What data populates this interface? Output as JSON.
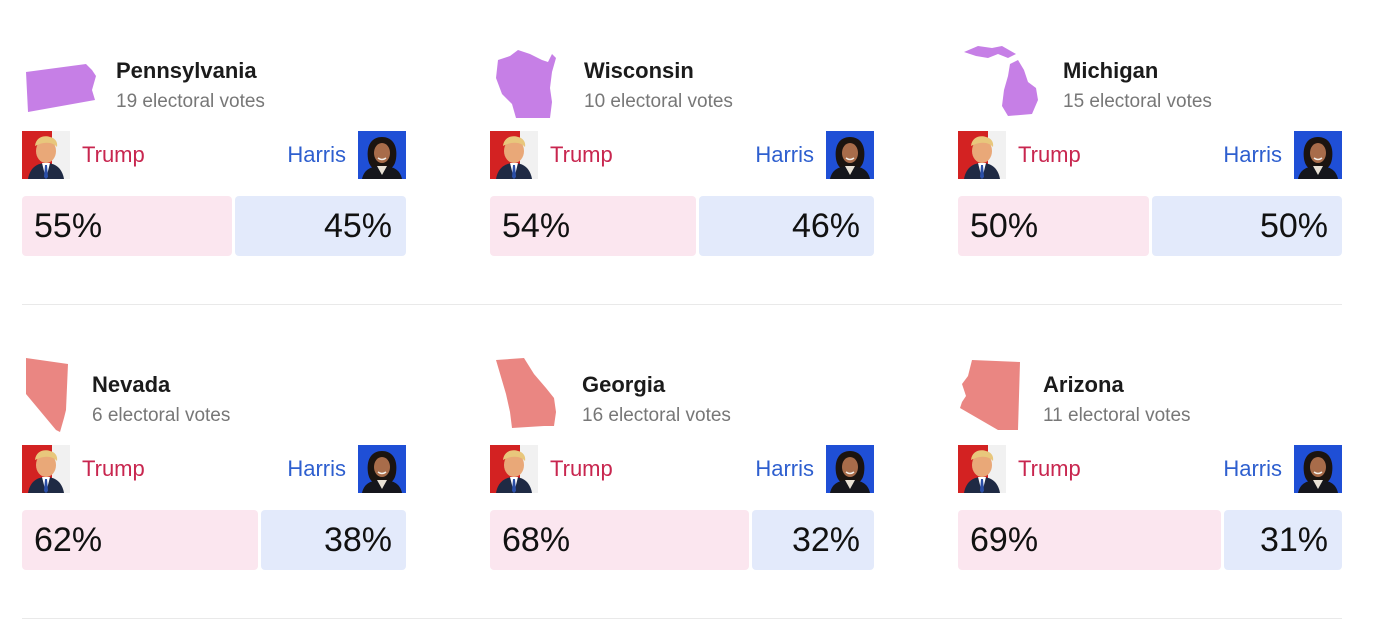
{
  "candidates": {
    "trump": {
      "label": "Trump",
      "color": "#c8264f",
      "bar_color": "#fbe6ef"
    },
    "harris": {
      "label": "Harris",
      "color": "#2e5fcf",
      "bar_color": "#e3eafb"
    }
  },
  "states": [
    {
      "name": "Pennsylvania",
      "votes": "19 electoral votes",
      "trump_pct": "55%",
      "harris_pct": "45%",
      "trump_share": 0.55,
      "shape_color": "#c67fe6",
      "shape_icon": "pennsylvania-shape-icon"
    },
    {
      "name": "Wisconsin",
      "votes": "10 electoral votes",
      "trump_pct": "54%",
      "harris_pct": "46%",
      "trump_share": 0.54,
      "shape_color": "#c67fe6",
      "shape_icon": "wisconsin-shape-icon"
    },
    {
      "name": "Michigan",
      "votes": "15 electoral votes",
      "trump_pct": "50%",
      "harris_pct": "50%",
      "trump_share": 0.5,
      "shape_color": "#c67fe6",
      "shape_icon": "michigan-shape-icon"
    },
    {
      "name": "Nevada",
      "votes": "6 electoral votes",
      "trump_pct": "62%",
      "harris_pct": "38%",
      "trump_share": 0.62,
      "shape_color": "#ea8682",
      "shape_icon": "nevada-shape-icon"
    },
    {
      "name": "Georgia",
      "votes": "16 electoral votes",
      "trump_pct": "68%",
      "harris_pct": "32%",
      "trump_share": 0.68,
      "shape_color": "#ea8682",
      "shape_icon": "georgia-shape-icon"
    },
    {
      "name": "Arizona",
      "votes": "11 electoral votes",
      "trump_pct": "69%",
      "harris_pct": "31%",
      "trump_share": 0.69,
      "shape_color": "#ea8682",
      "shape_icon": "arizona-shape-icon"
    }
  ]
}
